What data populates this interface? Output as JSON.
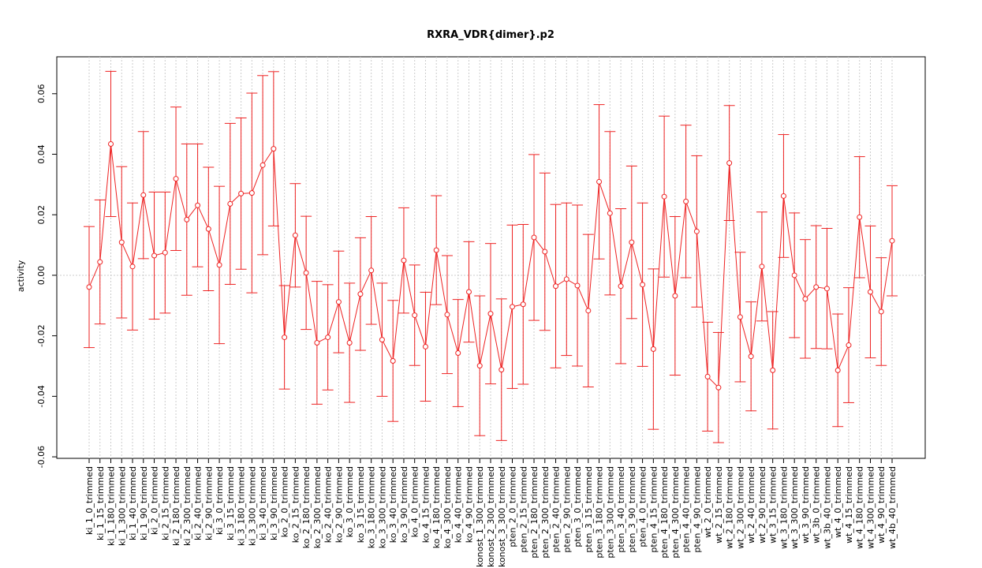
{
  "chart_data": {
    "type": "line",
    "title": "RXRA_VDR{dimer}.p2",
    "y_label": "activity",
    "categories": [
      "ki_1_0_trimmed",
      "ki_1_15_trimmed",
      "ki_1_180_trimmed",
      "ki_1_300_trimmed",
      "ki_1_40_trimmed",
      "ki_1_90_trimmed",
      "ki_2_0_trimmed",
      "ki_2_15_trimmed",
      "ki_2_180_trimmed",
      "ki_2_300_trimmed",
      "ki_2_40_trimmed",
      "ki_2_90_trimmed",
      "ki_3_0_trimmed",
      "ki_3_15_trimmed",
      "ki_3_180_trimmed",
      "ki_3_300_trimmed",
      "ki_3_40_trimmed",
      "ki_3_90_trimmed",
      "ko_2_0_trimmed",
      "ko_2_15_trimmed",
      "ko_2_180_trimmed",
      "ko_2_300_trimmed",
      "ko_2_40_trimmed",
      "ko_2_90_trimmed",
      "ko_3_0_trimmed",
      "ko_3_15_trimmed",
      "ko_3_180_trimmed",
      "ko_3_300_trimmed",
      "ko_3_40_trimmed",
      "ko_3_90_trimmed",
      "ko_4_0_trimmed",
      "ko_4_15_trimmed",
      "ko_4_180_trimmed",
      "ko_4_300_trimmed",
      "ko_4_40_trimmed",
      "ko_4_90_trimmed",
      "konost_1_300_trimmed",
      "konost_2_300_trimmed",
      "konost_3_300_trimmed",
      "pten_2_0_trimmed",
      "pten_2_15_trimmed",
      "pten_2_180_trimmed",
      "pten_2_300_trimmed",
      "pten_2_40_trimmed",
      "pten_2_90_trimmed",
      "pten_3_0_trimmed",
      "pten_3_15_trimmed",
      "pten_3_180_trimmed",
      "pten_3_300_trimmed",
      "pten_3_40_trimmed",
      "pten_3_90_trimmed",
      "pten_4_0_trimmed",
      "pten_4_15_trimmed",
      "pten_4_180_trimmed",
      "pten_4_300_trimmed",
      "pten_4_40_trimmed",
      "pten_4_90_trimmed",
      "wt_2_0_trimmed",
      "wt_2_15_trimmed",
      "wt_2_180_trimmed",
      "wt_2_300_trimmed",
      "wt_2_40_trimmed",
      "wt_2_90_trimmed",
      "wt_3_15_trimmed",
      "wt_3_180_trimmed",
      "wt_3_300_trimmed",
      "wt_3_90_trimmed",
      "wt_3b_0_trimmed",
      "wt_3b_40_trimmed",
      "wt_4_0_trimmed",
      "wt_4_15_trimmed",
      "wt_4_180_trimmed",
      "wt_4_300_trimmed",
      "wt_4_90_trimmed",
      "wt_4b_40_trimmed"
    ],
    "values": [
      -0.0039,
      0.0044,
      0.0434,
      0.0109,
      0.0029,
      0.0265,
      0.0065,
      0.0075,
      0.0319,
      0.0184,
      0.0231,
      0.0153,
      0.0034,
      0.0236,
      0.027,
      0.0272,
      0.0364,
      0.0418,
      -0.0205,
      0.0132,
      0.0008,
      -0.0223,
      -0.0205,
      -0.0088,
      -0.0223,
      -0.0062,
      0.0016,
      -0.0213,
      -0.0283,
      0.0049,
      -0.0132,
      -0.0236,
      0.0083,
      -0.013,
      -0.0257,
      -0.0055,
      -0.0299,
      -0.0127,
      -0.0312,
      -0.0104,
      -0.0096,
      0.0125,
      0.0078,
      -0.0036,
      -0.0013,
      -0.0034,
      -0.0117,
      0.0309,
      0.0205,
      -0.0036,
      0.0109,
      -0.0031,
      -0.0244,
      0.026,
      -0.0068,
      0.0244,
      0.0145,
      -0.0335,
      -0.0371,
      0.0371,
      -0.0138,
      -0.0268,
      0.0029,
      -0.0314,
      0.0262,
      0.0,
      -0.0078,
      -0.0039,
      -0.0044,
      -0.0314,
      -0.0231,
      0.0192,
      -0.0055,
      -0.012,
      0.0114
    ],
    "errors": [
      0.02,
      0.0205,
      0.024,
      0.025,
      0.021,
      0.021,
      0.021,
      0.02,
      0.0237,
      0.025,
      0.0203,
      0.0204,
      0.026,
      0.0266,
      0.025,
      0.033,
      0.0296,
      0.0255,
      0.0171,
      0.0171,
      0.0187,
      0.0203,
      0.0174,
      0.0168,
      0.0197,
      0.0186,
      0.0178,
      0.0187,
      0.02,
      0.0174,
      0.0166,
      0.018,
      0.018,
      0.0195,
      0.0177,
      0.0166,
      0.0231,
      0.0232,
      0.0234,
      0.027,
      0.0264,
      0.0274,
      0.026,
      0.027,
      0.0252,
      0.0266,
      0.0252,
      0.0255,
      0.027,
      0.0256,
      0.0252,
      0.027,
      0.0265,
      0.0266,
      0.0262,
      0.0252,
      0.025,
      0.018,
      0.0182,
      0.019,
      0.0214,
      0.018,
      0.018,
      0.0194,
      0.0203,
      0.0206,
      0.0196,
      0.0203,
      0.0199,
      0.0186,
      0.019,
      0.02,
      0.0218,
      0.0178,
      0.0182
    ],
    "color": "#ee2222",
    "ylim": [
      -0.0605,
      0.0722
    ],
    "yticks": [
      -0.06,
      -0.04,
      -0.02,
      {
        "value": 0,
        "label": "0.00"
      },
      0.02,
      0.04,
      0.06
    ],
    "grid": true
  }
}
